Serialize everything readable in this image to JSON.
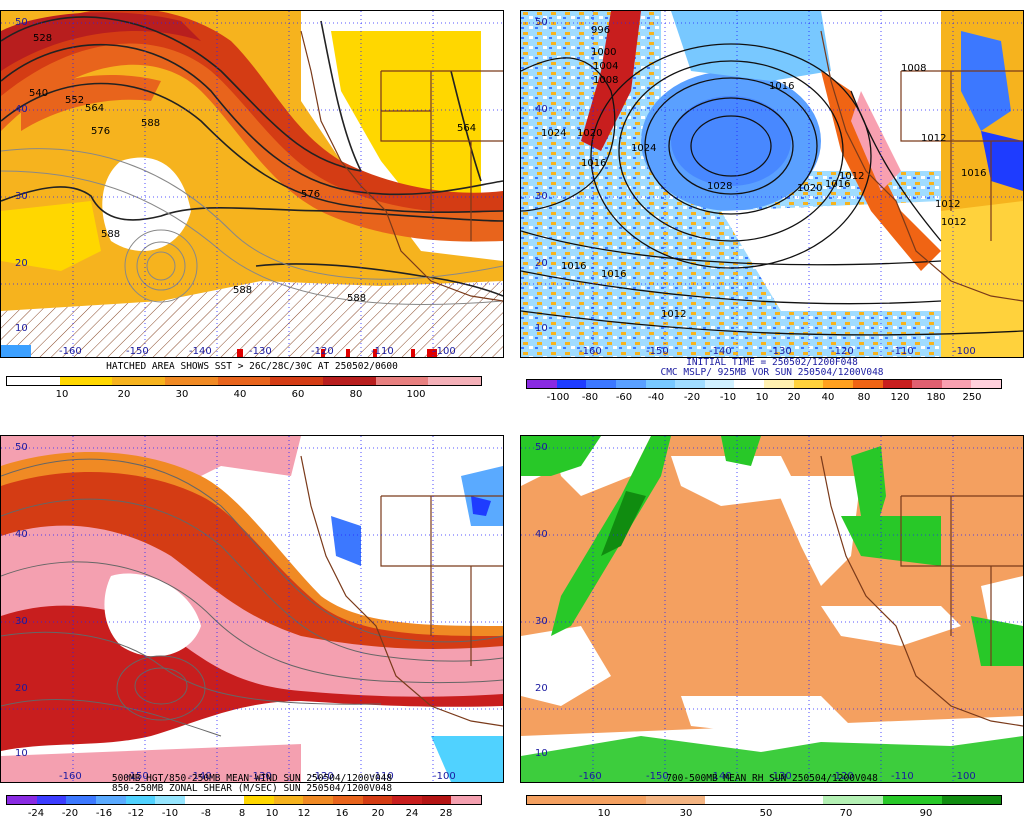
{
  "panels": [
    {
      "id": "sst-500mb",
      "caption_lines": [
        "HATCHED AREA SHOWS SST > 26C/28C/30C AT 250502/0600"
      ],
      "lat_labels": [
        "50",
        "40",
        "30",
        "20",
        "10"
      ],
      "lon_labels": [
        "-160",
        "-150",
        "-140",
        "-130",
        "-120",
        "-110",
        "-100"
      ],
      "contour_labels": [
        "528",
        "540",
        "552",
        "564",
        "576",
        "588",
        "588",
        "588",
        "576",
        "564",
        "588"
      ],
      "colorbar_colors": [
        "#ffffff",
        "#ffd700",
        "#f6b31e",
        "#f08a24",
        "#e8641c",
        "#d43c14",
        "#b81e1e",
        "#e88080",
        "#f4b0b8"
      ],
      "colorbar_ticks": [
        "10",
        "20",
        "30",
        "40",
        "60",
        "80",
        "100"
      ]
    },
    {
      "id": "mslp-vort",
      "caption_lines": [
        "INITIAL TIME = 250502/1200F048",
        "CMC MSLP/ 925MB VOR SUN 250504/1200V048"
      ],
      "lat_labels": [
        "50",
        "40",
        "30",
        "20",
        "10"
      ],
      "lon_labels": [
        "-160",
        "-150",
        "-140",
        "-130",
        "-120",
        "-110",
        "-100"
      ],
      "contour_labels": [
        "996",
        "1000",
        "1004",
        "1008",
        "1016",
        "1024",
        "1020",
        "1024",
        "1028",
        "1020",
        "1016",
        "1012",
        "1016",
        "1016",
        "1012",
        "1012",
        "1016",
        "1012",
        "1008",
        "1012",
        "1016"
      ],
      "colorbar_colors": [
        "#8a2be2",
        "#1e3cff",
        "#3c78ff",
        "#5aa0ff",
        "#78c8ff",
        "#a0dcff",
        "#d0f0ff",
        "#ffffff",
        "#fff0b0",
        "#ffd23c",
        "#ffa01e",
        "#f06414",
        "#c81e1e",
        "#e06070",
        "#f8a0b0",
        "#ffd0dc"
      ],
      "colorbar_ticks": [
        "-100",
        "-80",
        "-60",
        "-40",
        "-20",
        "-10",
        "10",
        "20",
        "40",
        "80",
        "120",
        "180",
        "250"
      ]
    },
    {
      "id": "zonal-shear",
      "caption_lines": [
        "500MB HGT/850-250MB MEAN WIND SUN 250504/1200V048",
        "850-250MB ZONAL SHEAR (M/SEC) SUN 250504/1200V048"
      ],
      "lat_labels": [
        "50",
        "40",
        "30",
        "20",
        "10"
      ],
      "lon_labels": [
        "-160",
        "-150",
        "-140",
        "-130",
        "-120",
        "-110",
        "-100"
      ],
      "colorbar_colors": [
        "#8a2be2",
        "#3c3cff",
        "#3c78ff",
        "#5aaaff",
        "#50d2ff",
        "#96e6ff",
        "#ffffff",
        "#ffffff",
        "#ffd700",
        "#f6b31e",
        "#f08a24",
        "#e8641c",
        "#d43c14",
        "#c81e1e",
        "#b41414",
        "#f4a0b0"
      ],
      "colorbar_ticks": [
        "-24",
        "-20",
        "-16",
        "-12",
        "-10",
        "-8",
        "8",
        "10",
        "12",
        "16",
        "20",
        "24",
        "28"
      ]
    },
    {
      "id": "mean-rh",
      "caption_lines": [
        "700-500MB MEAN RH SUN 250504/1200V048"
      ],
      "lat_labels": [
        "50",
        "40",
        "30",
        "20",
        "10"
      ],
      "lon_labels": [
        "-160",
        "-150",
        "-140",
        "-130",
        "-120",
        "-110",
        "-100"
      ],
      "colorbar_colors": [
        "#f4a060",
        "#f4a060",
        "#f4b482",
        "#ffffff",
        "#ffffff",
        "#b4f0b4",
        "#28c828",
        "#108c10"
      ],
      "colorbar_ticks": [
        "10",
        "30",
        "50",
        "70",
        "90"
      ]
    }
  ]
}
